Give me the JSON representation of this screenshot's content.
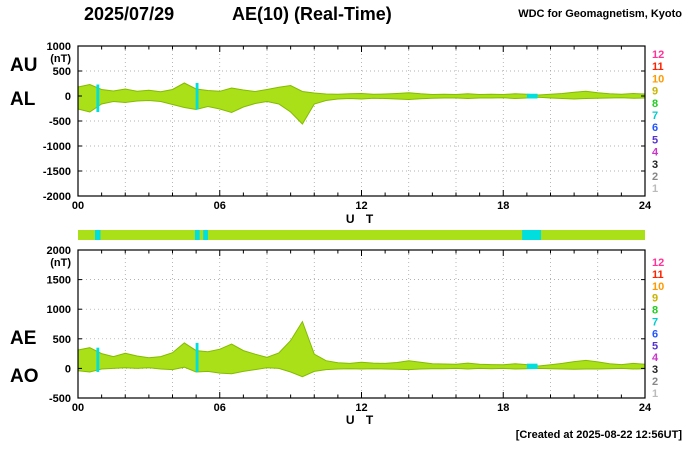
{
  "header": {
    "date": "2025/07/29",
    "title": "AE(10) (Real-Time)",
    "source": "WDC for Geomagnetism, Kyoto"
  },
  "footer": {
    "created": "[Created at 2025-08-22 12:56UT]"
  },
  "colors": {
    "band_fill": "#A9E018",
    "band_edge": "#84BC00",
    "gap": "#00DEDE",
    "frame": "#000000",
    "grid": "#999999"
  },
  "legend_stations": {
    "description": "number-of-stations color scale",
    "values": [
      "12",
      "11",
      "10",
      "9",
      "8",
      "7",
      "6",
      "5",
      "4",
      "3",
      "2",
      "1"
    ],
    "colors": [
      "#FF3399",
      "#FF2200",
      "#FF9900",
      "#C8B400",
      "#22CC22",
      "#00CCCC",
      "#2255FF",
      "#5533CC",
      "#CC33CC",
      "#222222",
      "#888888",
      "#BBBBBB"
    ]
  },
  "station_bar": {
    "fill": "#A9E018",
    "gap_fill": "#00DEDE",
    "xlim": [
      0,
      24
    ],
    "gap_segments": [
      [
        0.72,
        0.95
      ],
      [
        4.95,
        5.15
      ],
      [
        5.3,
        5.5
      ],
      [
        18.8,
        19.6
      ]
    ]
  },
  "chart_data": [
    {
      "type": "area",
      "title": "AU / AL envelope (upper panel)",
      "left_labels": [
        "AU",
        "AL"
      ],
      "ylabel": "(nT)",
      "xlabel": "U T",
      "xlim": [
        0,
        24
      ],
      "ylim": [
        -2000,
        1000
      ],
      "yticks": [
        1000,
        500,
        0,
        -500,
        -1000,
        -1500,
        -2000
      ],
      "ytick_labels": [
        "1000",
        "500",
        "0",
        "-500",
        "-1000",
        "-1500",
        "-2000"
      ],
      "xticks": [
        0,
        6,
        12,
        18,
        24
      ],
      "xtick_labels": [
        "00",
        "06",
        "12",
        "18",
        "24"
      ],
      "x_hours": [
        0,
        0.5,
        1,
        1.5,
        2,
        2.5,
        3,
        3.5,
        4,
        4.5,
        5,
        5.5,
        6,
        6.5,
        7,
        7.5,
        8,
        8.5,
        9,
        9.5,
        10,
        10.5,
        11,
        11.5,
        12,
        12.5,
        13,
        13.5,
        14,
        14.5,
        15,
        15.5,
        16,
        16.5,
        17,
        17.5,
        18,
        18.5,
        19,
        19.5,
        20,
        20.5,
        21,
        21.5,
        22,
        22.5,
        23,
        23.5,
        24
      ],
      "series": [
        {
          "name": "AU",
          "values": [
            180,
            230,
            130,
            100,
            140,
            95,
            115,
            85,
            130,
            260,
            140,
            110,
            95,
            160,
            120,
            90,
            130,
            175,
            210,
            90,
            60,
            40,
            35,
            45,
            50,
            35,
            40,
            50,
            65,
            45,
            30,
            35,
            30,
            45,
            30,
            35,
            30,
            45,
            35,
            20,
            35,
            50,
            75,
            95,
            65,
            45,
            35,
            50,
            40
          ]
        },
        {
          "name": "AL",
          "values": [
            -260,
            -320,
            -160,
            -110,
            -130,
            -100,
            -90,
            -110,
            -170,
            -230,
            -270,
            -210,
            -260,
            -330,
            -220,
            -150,
            -110,
            -160,
            -320,
            -560,
            -160,
            -90,
            -60,
            -50,
            -60,
            -45,
            -50,
            -60,
            -70,
            -55,
            -45,
            -40,
            -40,
            -50,
            -40,
            -40,
            -35,
            -50,
            -40,
            -25,
            -40,
            -50,
            -60,
            -50,
            -45,
            -40,
            -35,
            -45,
            -40
          ]
        }
      ],
      "gap_segments": [
        [
          0.78,
          0.9
        ],
        [
          4.98,
          5.1
        ],
        [
          19.0,
          19.45
        ]
      ]
    },
    {
      "type": "area",
      "title": "AE / AO envelope (lower panel)",
      "left_labels": [
        "AE",
        "AO"
      ],
      "ylabel": "(nT)",
      "xlabel": "U T",
      "xlim": [
        0,
        24
      ],
      "ylim": [
        -500,
        2000
      ],
      "yticks": [
        2000,
        1500,
        1000,
        500,
        0,
        -500
      ],
      "ytick_labels": [
        "2000",
        "1500",
        "1000",
        "500",
        "0",
        "-500"
      ],
      "xticks": [
        0,
        6,
        12,
        18,
        24
      ],
      "xtick_labels": [
        "00",
        "06",
        "12",
        "18",
        "24"
      ],
      "x_hours": [
        0,
        0.5,
        1,
        1.5,
        2,
        2.5,
        3,
        3.5,
        4,
        4.5,
        5,
        5.5,
        6,
        6.5,
        7,
        7.5,
        8,
        8.5,
        9,
        9.5,
        10,
        10.5,
        11,
        11.5,
        12,
        12.5,
        13,
        13.5,
        14,
        14.5,
        15,
        15.5,
        16,
        16.5,
        17,
        17.5,
        18,
        18.5,
        19,
        19.5,
        20,
        20.5,
        21,
        21.5,
        22,
        22.5,
        23,
        23.5,
        24
      ],
      "series": [
        {
          "name": "AE",
          "values": [
            310,
            350,
            250,
            200,
            255,
            210,
            180,
            200,
            265,
            430,
            300,
            280,
            325,
            410,
            300,
            240,
            185,
            260,
            470,
            790,
            240,
            130,
            95,
            85,
            105,
            90,
            85,
            100,
            130,
            105,
            80,
            75,
            70,
            90,
            70,
            65,
            60,
            80,
            65,
            40,
            60,
            85,
            115,
            135,
            110,
            80,
            65,
            85,
            70
          ]
        },
        {
          "name": "AO",
          "values": [
            -40,
            -60,
            -10,
            0,
            10,
            0,
            10,
            -10,
            -20,
            20,
            -60,
            -50,
            -80,
            -90,
            -50,
            -20,
            10,
            0,
            -60,
            -140,
            -50,
            -20,
            -10,
            -5,
            -10,
            -5,
            -10,
            -15,
            -20,
            -10,
            -5,
            -5,
            0,
            -10,
            0,
            -5,
            0,
            -10,
            -5,
            0,
            -5,
            -10,
            -15,
            -10,
            -10,
            -5,
            0,
            -10,
            -5
          ]
        }
      ],
      "gap_segments": [
        [
          0.78,
          0.9
        ],
        [
          4.98,
          5.1
        ],
        [
          19.0,
          19.45
        ]
      ]
    }
  ]
}
